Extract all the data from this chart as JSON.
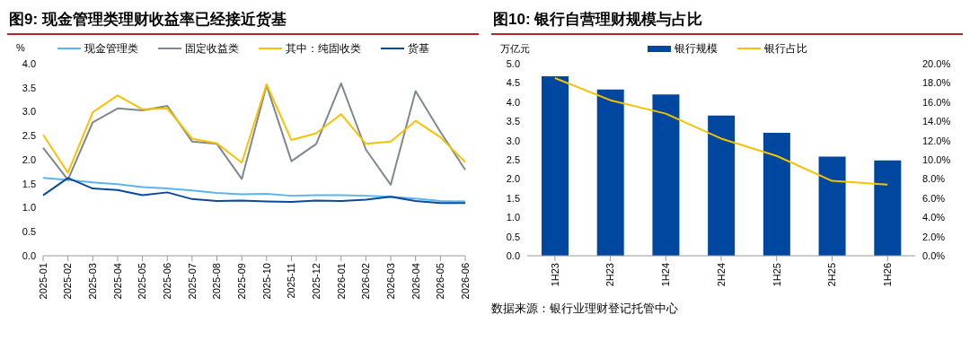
{
  "chart_data": [
    {
      "type": "line",
      "title": "图9: 现金管理类理财收益率已经接近货基",
      "ylabel": "%",
      "categories": [
        "2025-01",
        "2025-02",
        "2025-03",
        "2025-04",
        "2025-05",
        "2025-06",
        "2025-07",
        "2025-08",
        "2025-09",
        "2025-10",
        "2025-11",
        "2025-12",
        "2026-01",
        "2026-02",
        "2026-03",
        "2026-04",
        "2026-05",
        "2026-06"
      ],
      "series": [
        {
          "name": "现金管理类",
          "color": "#5bb4f0",
          "values": [
            1.62,
            1.58,
            1.53,
            1.49,
            1.43,
            1.4,
            1.36,
            1.31,
            1.28,
            1.29,
            1.25,
            1.26,
            1.26,
            1.25,
            1.23,
            1.19,
            1.14,
            1.13
          ]
        },
        {
          "name": "固定收益类",
          "color": "#7f8790",
          "values": [
            2.25,
            1.58,
            2.78,
            3.07,
            3.03,
            3.12,
            2.38,
            2.33,
            1.6,
            3.55,
            1.97,
            2.33,
            3.59,
            2.21,
            1.48,
            3.43,
            2.58,
            1.79
          ]
        },
        {
          "name": "其中：纯固收类",
          "color": "#f5c200",
          "values": [
            2.52,
            1.73,
            2.99,
            3.34,
            3.05,
            3.07,
            2.44,
            2.34,
            1.94,
            3.57,
            2.41,
            2.55,
            2.95,
            2.33,
            2.38,
            2.81,
            2.47,
            1.95
          ]
        },
        {
          "name": "货基",
          "color": "#0a4a9a",
          "values": [
            1.26,
            1.62,
            1.4,
            1.37,
            1.26,
            1.32,
            1.18,
            1.14,
            1.15,
            1.13,
            1.12,
            1.15,
            1.14,
            1.17,
            1.23,
            1.14,
            1.1,
            1.1
          ]
        }
      ],
      "ylim": [
        0,
        4
      ],
      "yticks": [
        {
          "value": 0,
          "label": "0.0"
        },
        {
          "value": 0.5,
          "label": "0.5"
        },
        {
          "value": 1,
          "label": "1.0"
        },
        {
          "value": 1.5,
          "label": "1.5"
        },
        {
          "value": 2,
          "label": "2.0"
        },
        {
          "value": 2.5,
          "label": "2.5"
        },
        {
          "value": 3,
          "label": "3.0"
        },
        {
          "value": 3.5,
          "label": "3.5"
        },
        {
          "value": 4,
          "label": "4.0"
        }
      ],
      "grid": false,
      "legend": "top",
      "marker": "none"
    },
    {
      "type": "bar",
      "title": "图10: 银行自营理财规模与占比",
      "ylabel": "万亿元",
      "categories": [
        "1H23",
        "2H23",
        "1H24",
        "2H24",
        "1H25",
        "2H25",
        "1H26"
      ],
      "series": [
        {
          "name": "银行规模",
          "color": "#0047a0",
          "values": [
            4.67,
            4.33,
            4.2,
            3.65,
            3.2,
            2.58,
            2.48
          ]
        },
        {
          "name": "银行占比",
          "type": "line",
          "axis": "y2",
          "color": "#f5c200",
          "values": [
            18.5,
            16.2,
            14.8,
            12.2,
            10.4,
            7.8,
            7.4
          ]
        }
      ],
      "ylim": [
        0,
        5
      ],
      "yticks": [
        {
          "value": 0,
          "label": "0.0"
        },
        {
          "value": 0.5,
          "label": "0.5"
        },
        {
          "value": 1,
          "label": "1.0"
        },
        {
          "value": 1.5,
          "label": "1.5"
        },
        {
          "value": 2,
          "label": "2.0"
        },
        {
          "value": 2.5,
          "label": "2.5"
        },
        {
          "value": 3,
          "label": "3.0"
        },
        {
          "value": 3.5,
          "label": "3.5"
        },
        {
          "value": 4,
          "label": "4.0"
        },
        {
          "value": 4.5,
          "label": "4.5"
        },
        {
          "value": 5,
          "label": "5.0"
        }
      ],
      "y2lim": [
        0,
        20
      ],
      "y2ticks": [
        {
          "value": 0,
          "label": "0.0%"
        },
        {
          "value": 2,
          "label": "2.0%"
        },
        {
          "value": 4,
          "label": "4.0%"
        },
        {
          "value": 6,
          "label": "6.0%"
        },
        {
          "value": 8,
          "label": "8.0%"
        },
        {
          "value": 10,
          "label": "10.0%"
        },
        {
          "value": 12,
          "label": "12.0%"
        },
        {
          "value": 14,
          "label": "14.0%"
        },
        {
          "value": 16,
          "label": "16.0%"
        },
        {
          "value": 18,
          "label": "18.0%"
        },
        {
          "value": 20,
          "label": "20.0%"
        }
      ],
      "grid": false,
      "legend": "top",
      "marker": "none",
      "annotations": [
        "数据来源：银行业理财登记托管中心"
      ]
    }
  ]
}
